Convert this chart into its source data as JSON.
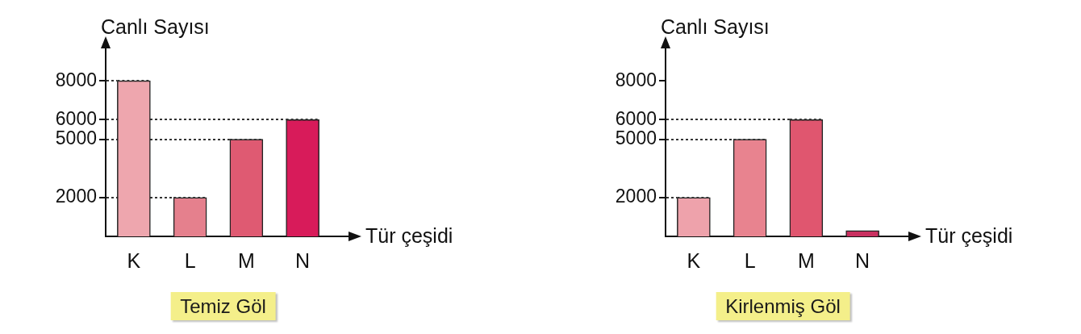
{
  "chart_data": [
    {
      "type": "bar",
      "title": "Temiz Göl",
      "xlabel": "Tür çeşidi",
      "ylabel": "Canlı Sayısı",
      "categories": [
        "K",
        "L",
        "M",
        "N"
      ],
      "values": [
        8000,
        2000,
        5000,
        6000
      ],
      "colors": [
        "#eea6ae",
        "#e5808d",
        "#df5a72",
        "#d81b5a"
      ],
      "ylim": [
        0,
        10000
      ],
      "yticks": [
        2000,
        5000,
        6000,
        8000
      ],
      "ref_lines": [
        {
          "axis": "y",
          "value": 8000,
          "color": "#333333",
          "line_style": "dotted"
        },
        {
          "axis": "y",
          "value": 6000,
          "color": "#333333",
          "line_style": "dotted"
        },
        {
          "axis": "y",
          "value": 5000,
          "color": "#333333",
          "line_style": "dotted"
        },
        {
          "axis": "y",
          "value": 2000,
          "color": "#333333",
          "line_style": "dotted"
        }
      ]
    },
    {
      "type": "bar",
      "title": "Kirlenmiş Göl",
      "xlabel": "Tür çeşidi",
      "ylabel": "Canlı Sayısı",
      "categories": [
        "K",
        "L",
        "M",
        "N"
      ],
      "values": [
        2000,
        5000,
        6000,
        300
      ],
      "colors": [
        "#eea2ab",
        "#e8838f",
        "#e0566f",
        "#c93060"
      ],
      "ylim": [
        0,
        10000
      ],
      "yticks": [
        2000,
        5000,
        6000,
        8000
      ],
      "ref_lines": [
        {
          "axis": "y",
          "value": 6000,
          "color": "#333333",
          "line_style": "dotted"
        },
        {
          "axis": "y",
          "value": 5000,
          "color": "#333333",
          "line_style": "dotted"
        },
        {
          "axis": "y",
          "value": 2000,
          "color": "#333333",
          "line_style": "dotted"
        }
      ]
    }
  ]
}
